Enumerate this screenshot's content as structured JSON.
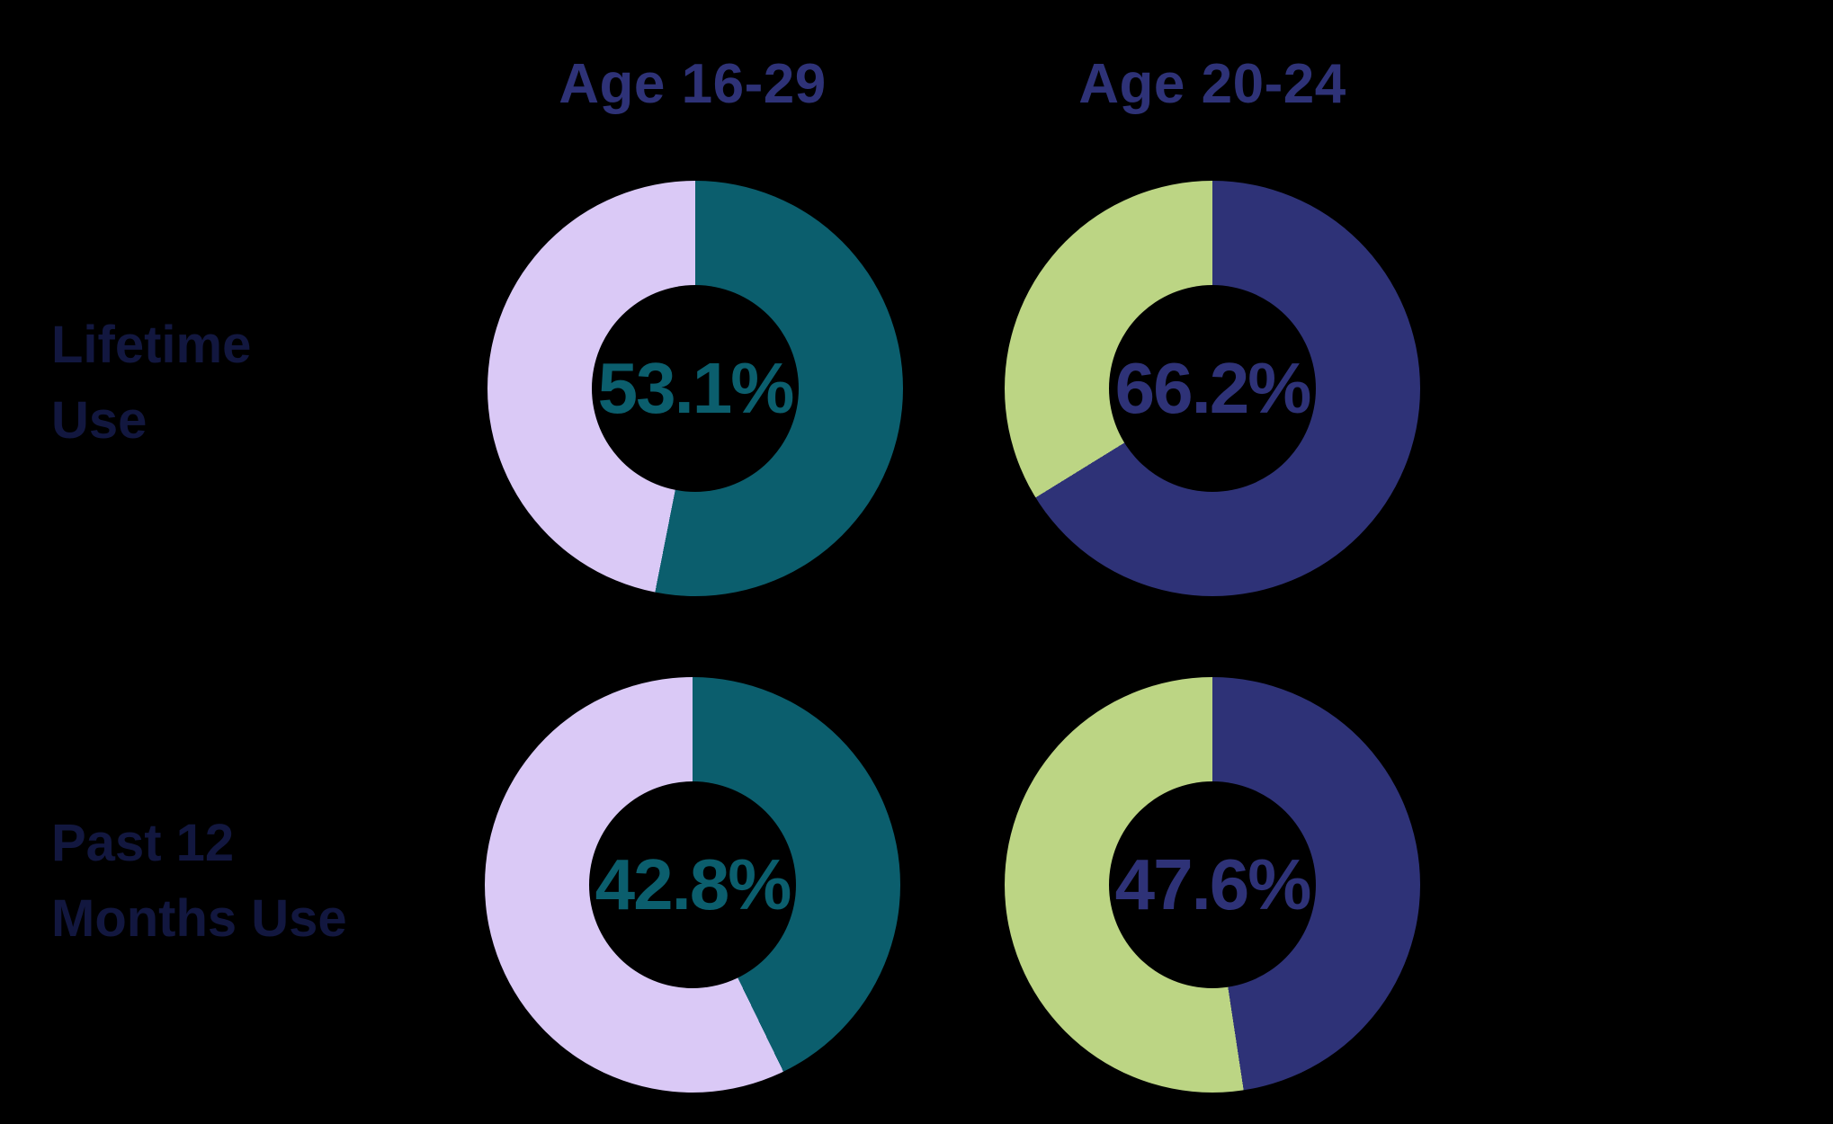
{
  "colors": {
    "background": "#000000",
    "heading_text": "#2e3277",
    "row_label_text": "#12173f",
    "teal": "#0b5e6d",
    "lavender": "#dac9f6",
    "navy": "#2e3277",
    "green": "#bcd584"
  },
  "columns": [
    {
      "label": "Age 16-29"
    },
    {
      "label": "Age 20-24"
    }
  ],
  "rows": [
    {
      "label_lines": [
        "Lifetime",
        "Use"
      ]
    },
    {
      "label_lines": [
        "Past 12",
        "Months Use"
      ]
    }
  ],
  "chart_data": {
    "type": "pie",
    "subtype": "donut-grid",
    "title": "",
    "grid": "2 rows x 2 columns of donut charts on black background",
    "columns": [
      "Age 16-29",
      "Age 20-24"
    ],
    "rows": [
      "Lifetime Use",
      "Past 12 Months Use"
    ],
    "legend_position": "none",
    "donuts": [
      {
        "row": "Lifetime Use",
        "column": "Age 16-29",
        "value": 53.1,
        "remainder": 46.9,
        "value_label": "53.1%",
        "fill_color": "#0b5e6d",
        "track_color": "#dac9f6",
        "start_angle_deg": 0,
        "direction": "clockwise"
      },
      {
        "row": "Lifetime Use",
        "column": "Age 20-24",
        "value": 66.2,
        "remainder": 33.8,
        "value_label": "66.2%",
        "fill_color": "#2e3277",
        "track_color": "#bcd584",
        "start_angle_deg": 0,
        "direction": "clockwise"
      },
      {
        "row": "Past 12 Months Use",
        "column": "Age 16-29",
        "value": 42.8,
        "remainder": 57.2,
        "value_label": "42.8%",
        "fill_color": "#0b5e6d",
        "track_color": "#dac9f6",
        "start_angle_deg": 0,
        "direction": "clockwise"
      },
      {
        "row": "Past 12 Months Use",
        "column": "Age 20-24",
        "value": 47.6,
        "remainder": 52.4,
        "value_label": "47.6%",
        "fill_color": "#2e3277",
        "track_color": "#bcd584",
        "start_angle_deg": 0,
        "direction": "clockwise"
      }
    ]
  }
}
